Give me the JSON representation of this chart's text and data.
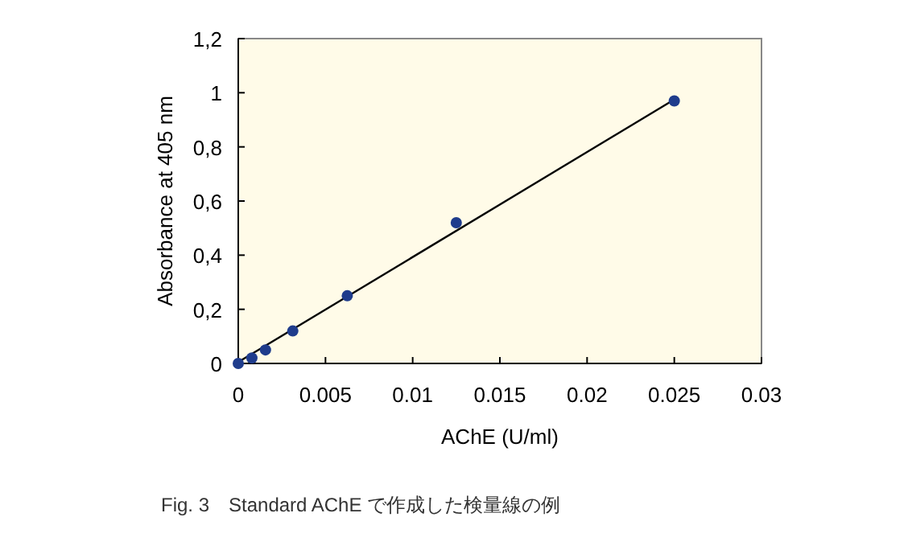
{
  "chart_data": {
    "type": "scatter",
    "xlabel": "AChE (U/ml)",
    "ylabel": "Absorbance at 405 nm",
    "annotations": [
      "Fig. 3　Standard AChE で作成した検量線の例"
    ],
    "series": [
      {
        "type": "scatter",
        "color": "#1f3c8c",
        "marker": "circle",
        "x": [
          0,
          0.00078,
          0.00156,
          0.003125,
          0.00625,
          0.0125,
          0.025
        ],
        "values": [
          0.0,
          0.02,
          0.05,
          0.12,
          0.25,
          0.52,
          0.97
        ]
      },
      {
        "type": "line",
        "color": "#000000",
        "x": [
          0,
          0.025
        ],
        "values": [
          0.005,
          0.975
        ]
      }
    ],
    "xlim": [
      0,
      0.03
    ],
    "xticks": [
      0,
      0.005,
      0.01,
      0.015,
      0.02,
      0.025,
      0.03
    ],
    "ylim": [
      0,
      1.2
    ],
    "yticks": [
      0,
      {
        "value": 0.2,
        "label": "0,2"
      },
      {
        "value": 0.4,
        "label": "0,4"
      },
      {
        "value": 0.6,
        "label": "0,6"
      },
      {
        "value": 0.8,
        "label": "0,8"
      },
      1,
      {
        "value": 1.2,
        "label": "1,2"
      }
    ],
    "grid": false
  }
}
